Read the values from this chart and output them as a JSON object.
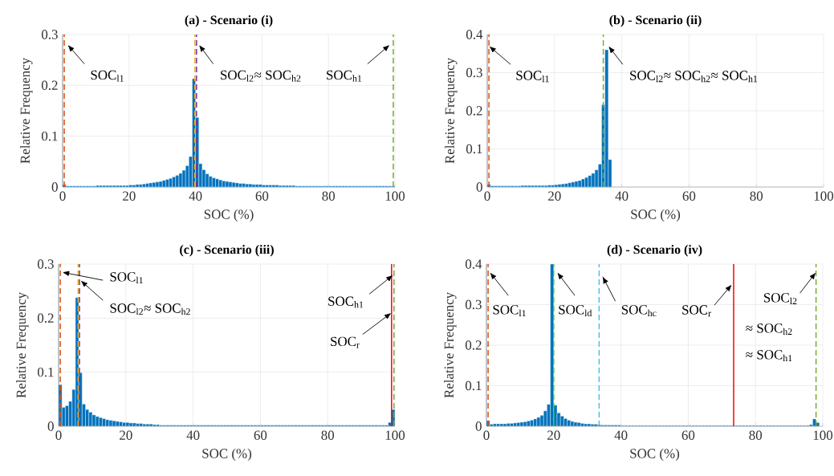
{
  "chart_data": [
    {
      "type": "histogram",
      "title": "(a) - Scenario (i)",
      "xlabel": "SOC (%)",
      "ylabel": "Relative Frequency",
      "color": "#0072bd",
      "grid": true,
      "bins": [
        0,
        1,
        2,
        3,
        4,
        5,
        6,
        7,
        8,
        9,
        10,
        11,
        12,
        13,
        14,
        15,
        16,
        17,
        18,
        19,
        20,
        21,
        22,
        23,
        24,
        25,
        26,
        27,
        28,
        29,
        30,
        31,
        32,
        33,
        34,
        35,
        36,
        37,
        38,
        39,
        40,
        41,
        42,
        43,
        44,
        45,
        46,
        47,
        48,
        49,
        50,
        51,
        52,
        53,
        54,
        55,
        56,
        57,
        58,
        59,
        60,
        61,
        62,
        63,
        64,
        65,
        66,
        67,
        68,
        69,
        70,
        71,
        72,
        73,
        74,
        75,
        76,
        77,
        78,
        79,
        80,
        81,
        82,
        83,
        84,
        85,
        86,
        87,
        88,
        89,
        90,
        91,
        92,
        93,
        94,
        95,
        96,
        97,
        98,
        99,
        100
      ],
      "values": [
        0.005,
        0.002,
        0.002,
        0.002,
        0.002,
        0.002,
        0.002,
        0.002,
        0.002,
        0.002,
        0.003,
        0.003,
        0.003,
        0.003,
        0.003,
        0.003,
        0.003,
        0.003,
        0.003,
        0.003,
        0.004,
        0.004,
        0.005,
        0.005,
        0.006,
        0.007,
        0.008,
        0.009,
        0.01,
        0.011,
        0.013,
        0.015,
        0.017,
        0.02,
        0.023,
        0.027,
        0.033,
        0.042,
        0.06,
        0.213,
        0.137,
        0.046,
        0.034,
        0.026,
        0.021,
        0.018,
        0.016,
        0.014,
        0.012,
        0.011,
        0.01,
        0.009,
        0.008,
        0.007,
        0.007,
        0.006,
        0.006,
        0.005,
        0.005,
        0.005,
        0.004,
        0.004,
        0.004,
        0.004,
        0.004,
        0.003,
        0.003,
        0.003,
        0.003,
        0.003,
        0.002,
        0.002,
        0.002,
        0.002,
        0.002,
        0.002,
        0.002,
        0.002,
        0.002,
        0.002,
        0.002,
        0.002,
        0.002,
        0.002,
        0.002,
        0.002,
        0.002,
        0.002,
        0.002,
        0.002,
        0.002,
        0.002,
        0.002,
        0.002,
        0.002,
        0.002,
        0.002,
        0.002,
        0.002,
        0.002
      ],
      "xlim": [
        0,
        100
      ],
      "xticks": [
        0,
        20,
        40,
        60,
        80,
        100
      ],
      "ylim": [
        0,
        0.3
      ],
      "yticks": [
        0,
        0.1,
        0.2,
        0.3
      ],
      "ref_lines": [
        {
          "axis": "x",
          "value": 0.5,
          "color": "#d95319",
          "line_style": "dashed"
        },
        {
          "axis": "x",
          "value": 39.8,
          "color": "#edb120",
          "line_style": "dashed"
        },
        {
          "axis": "x",
          "value": 40.3,
          "color": "#7e2f8e",
          "line_style": "dashed"
        },
        {
          "axis": "x",
          "value": 99.5,
          "color": "#77ac30",
          "line_style": "dashed"
        }
      ],
      "annotations": [
        {
          "text": "SOC$_{l1}$",
          "x": 1.5,
          "y": 0.28
        },
        {
          "text": "SOC$_{l2}$≈ SOC$_{h2}$",
          "x": 41,
          "y": 0.28
        },
        {
          "text": "SOC$_{h1}$",
          "x": 98.5,
          "y": 0.28
        }
      ]
    },
    {
      "type": "histogram",
      "title": "(b) - Scenario (ii)",
      "xlabel": "SOC (%)",
      "ylabel": "Relative Frequency",
      "color": "#0072bd",
      "grid": true,
      "bins": [
        0,
        1,
        2,
        3,
        4,
        5,
        6,
        7,
        8,
        9,
        10,
        11,
        12,
        13,
        14,
        15,
        16,
        17,
        18,
        19,
        20,
        21,
        22,
        23,
        24,
        25,
        26,
        27,
        28,
        29,
        30,
        31,
        32,
        33,
        34,
        35,
        36,
        37,
        38,
        39,
        40,
        41,
        42,
        43,
        44,
        45,
        46,
        47,
        48,
        49,
        50,
        51,
        52,
        53,
        54,
        55,
        56,
        57,
        58,
        59,
        60,
        61,
        62,
        63,
        64,
        65,
        66,
        67,
        68,
        69,
        70,
        71,
        72,
        73,
        74,
        75,
        76,
        77,
        78,
        79,
        80,
        81,
        82,
        83,
        84,
        85,
        86,
        87,
        88,
        89,
        90,
        91,
        92,
        93,
        94,
        95,
        96,
        97,
        98,
        99,
        100
      ],
      "values": [
        0.007,
        0.003,
        0.003,
        0.003,
        0.003,
        0.003,
        0.003,
        0.003,
        0.003,
        0.003,
        0.004,
        0.004,
        0.004,
        0.004,
        0.004,
        0.004,
        0.004,
        0.004,
        0.005,
        0.005,
        0.006,
        0.007,
        0.008,
        0.009,
        0.011,
        0.013,
        0.015,
        0.017,
        0.021,
        0.025,
        0.03,
        0.036,
        0.045,
        0.06,
        0.216,
        0.36,
        0.072,
        0,
        0,
        0,
        0,
        0,
        0,
        0,
        0,
        0,
        0,
        0,
        0,
        0,
        0,
        0,
        0,
        0,
        0,
        0,
        0,
        0,
        0,
        0,
        0,
        0,
        0,
        0,
        0,
        0,
        0,
        0,
        0,
        0,
        0,
        0,
        0,
        0,
        0,
        0,
        0,
        0,
        0,
        0,
        0,
        0,
        0,
        0,
        0,
        0,
        0,
        0,
        0,
        0,
        0,
        0,
        0,
        0,
        0,
        0,
        0,
        0,
        0,
        0
      ],
      "xlim": [
        0,
        100
      ],
      "xticks": [
        0,
        20,
        40,
        60,
        80,
        100
      ],
      "ylim": [
        0,
        0.4
      ],
      "yticks": [
        0,
        0.1,
        0.2,
        0.3,
        0.4
      ],
      "ref_lines": [
        {
          "axis": "x",
          "value": 0.5,
          "color": "#d95319",
          "line_style": "dashed"
        },
        {
          "axis": "x",
          "value": 34.5,
          "color": "#77ac30",
          "line_style": "dashed"
        }
      ],
      "annotations": [
        {
          "text": "SOC$_{l1}$",
          "x": 0.5,
          "y": 0.37
        },
        {
          "text": "SOC$_{l2}$≈ SOC$_{h2}$≈ SOC$_{h1}$",
          "x": 36,
          "y": 0.37
        }
      ]
    },
    {
      "type": "histogram",
      "title": "(c) - Scenario (iii)",
      "xlabel": "SOC (%)",
      "ylabel": "Relative Frequency",
      "color": "#0072bd",
      "grid": true,
      "bins": [
        0,
        1,
        2,
        3,
        4,
        5,
        6,
        7,
        8,
        9,
        10,
        11,
        12,
        13,
        14,
        15,
        16,
        17,
        18,
        19,
        20,
        21,
        22,
        23,
        24,
        25,
        26,
        27,
        28,
        29,
        30,
        31,
        32,
        33,
        34,
        35,
        36,
        37,
        38,
        39,
        40,
        41,
        42,
        43,
        44,
        45,
        46,
        47,
        48,
        49,
        50,
        51,
        52,
        53,
        54,
        55,
        56,
        57,
        58,
        59,
        60,
        61,
        62,
        63,
        64,
        65,
        66,
        67,
        68,
        69,
        70,
        71,
        72,
        73,
        74,
        75,
        76,
        77,
        78,
        79,
        80,
        81,
        82,
        83,
        84,
        85,
        86,
        87,
        88,
        89,
        90,
        91,
        92,
        93,
        94,
        95,
        96,
        97,
        98,
        99,
        100
      ],
      "values": [
        0.077,
        0.035,
        0.038,
        0.046,
        0.068,
        0.238,
        0.099,
        0.041,
        0.031,
        0.026,
        0.021,
        0.018,
        0.016,
        0.014,
        0.012,
        0.011,
        0.01,
        0.009,
        0.008,
        0.007,
        0.007,
        0.006,
        0.006,
        0.005,
        0.005,
        0.004,
        0.004,
        0.004,
        0.003,
        0.003,
        0.002,
        0.002,
        0.002,
        0.002,
        0.002,
        0.002,
        0.002,
        0.002,
        0.002,
        0.002,
        0.002,
        0.002,
        0.002,
        0.002,
        0.002,
        0.002,
        0.002,
        0.002,
        0.002,
        0.002,
        0.002,
        0.002,
        0.002,
        0.002,
        0.002,
        0.002,
        0.002,
        0.002,
        0.002,
        0.002,
        0.002,
        0.002,
        0.002,
        0.002,
        0.002,
        0.002,
        0.002,
        0.002,
        0.002,
        0.002,
        0.002,
        0.002,
        0.002,
        0.002,
        0.002,
        0.002,
        0.002,
        0.002,
        0.002,
        0.002,
        0.002,
        0.002,
        0.002,
        0.002,
        0.002,
        0.002,
        0.002,
        0.002,
        0.002,
        0.002,
        0.002,
        0.002,
        0.002,
        0.002,
        0.002,
        0.002,
        0.002,
        0.002,
        0.007,
        0.031
      ],
      "xlim": [
        0,
        100
      ],
      "xticks": [
        0,
        20,
        40,
        60,
        80,
        100
      ],
      "ylim": [
        0,
        0.3
      ],
      "yticks": [
        0,
        0.1,
        0.2,
        0.3
      ],
      "ref_lines": [
        {
          "axis": "x",
          "value": 0.5,
          "color": "#d95319",
          "line_style": "dashed"
        },
        {
          "axis": "x",
          "value": 5.8,
          "color": "#edb120",
          "line_style": "dashed"
        },
        {
          "axis": "x",
          "value": 6.2,
          "color": "#7e2f8e",
          "line_style": "dashed"
        },
        {
          "axis": "x",
          "value": 99,
          "color": "#ff0000",
          "line_style": "solid"
        },
        {
          "axis": "x",
          "value": 99.7,
          "color": "#77ac30",
          "line_style": "dashed"
        }
      ],
      "annotations": [
        {
          "text": "SOC$_{l1}$",
          "x": 1,
          "y": 0.285
        },
        {
          "text": "SOC$_{l2}$≈ SOC$_{h2}$",
          "x": 6.5,
          "y": 0.27
        },
        {
          "text": "SOC$_{h1}$",
          "x": 99.5,
          "y": 0.28
        },
        {
          "text": "SOC$_{r}$",
          "x": 99,
          "y": 0.21
        }
      ]
    },
    {
      "type": "histogram",
      "title": "(d) - Scenario (iv)",
      "xlabel": "SOC (%)",
      "ylabel": "Relative Frequency",
      "color": "#0072bd",
      "grid": true,
      "bins": [
        0,
        1,
        2,
        3,
        4,
        5,
        6,
        7,
        8,
        9,
        10,
        11,
        12,
        13,
        14,
        15,
        16,
        17,
        18,
        19,
        20,
        21,
        22,
        23,
        24,
        25,
        26,
        27,
        28,
        29,
        30,
        31,
        32,
        33,
        34,
        35,
        36,
        37,
        38,
        39,
        40,
        41,
        42,
        43,
        44,
        45,
        46,
        47,
        48,
        49,
        50,
        51,
        52,
        53,
        54,
        55,
        56,
        57,
        58,
        59,
        60,
        61,
        62,
        63,
        64,
        65,
        66,
        67,
        68,
        69,
        70,
        71,
        72,
        73,
        74,
        75,
        76,
        77,
        78,
        79,
        80,
        81,
        82,
        83,
        84,
        85,
        86,
        87,
        88,
        89,
        90,
        91,
        92,
        93,
        94,
        95,
        96,
        97,
        98,
        99,
        100
      ],
      "values": [
        0.014,
        0.005,
        0.006,
        0.006,
        0.006,
        0.006,
        0.007,
        0.007,
        0.008,
        0.009,
        0.01,
        0.011,
        0.013,
        0.015,
        0.018,
        0.022,
        0.027,
        0.038,
        0.054,
        0.4,
        0.052,
        0.033,
        0.025,
        0.019,
        0.015,
        0.012,
        0.01,
        0.009,
        0.007,
        0.006,
        0.006,
        0.005,
        0.005,
        0.004,
        0.003,
        0.003,
        0.003,
        0.003,
        0.003,
        0.003,
        0.002,
        0.002,
        0.002,
        0.002,
        0.002,
        0.002,
        0.002,
        0.002,
        0.002,
        0.002,
        0.002,
        0.002,
        0.002,
        0.002,
        0.002,
        0.002,
        0.002,
        0.002,
        0.002,
        0.002,
        0.002,
        0.002,
        0.002,
        0.002,
        0.002,
        0.002,
        0.002,
        0.002,
        0.002,
        0.002,
        0.002,
        0.002,
        0.002,
        0.002,
        0.002,
        0.002,
        0.002,
        0.002,
        0.002,
        0.002,
        0.002,
        0.002,
        0.002,
        0.002,
        0.002,
        0.002,
        0.002,
        0.002,
        0.002,
        0.002,
        0.002,
        0.002,
        0.002,
        0.002,
        0.002,
        0.002,
        0.004,
        0.018,
        0.009,
        0
      ],
      "xlim": [
        0,
        100
      ],
      "xticks": [
        0,
        20,
        40,
        60,
        80,
        100
      ],
      "ylim": [
        0,
        0.4
      ],
      "yticks": [
        0,
        0.1,
        0.2,
        0.3,
        0.4
      ],
      "ref_lines": [
        {
          "axis": "x",
          "value": 0.5,
          "color": "#d95319",
          "line_style": "dashed"
        },
        {
          "axis": "x",
          "value": 20,
          "color": "#22dd22",
          "line_style": "dashed"
        },
        {
          "axis": "x",
          "value": 33.5,
          "color": "#4dbeee",
          "line_style": "dashed"
        },
        {
          "axis": "x",
          "value": 73.5,
          "color": "#ff0000",
          "line_style": "solid"
        },
        {
          "axis": "x",
          "value": 98,
          "color": "#77ac30",
          "line_style": "dashed"
        }
      ],
      "annotations": [
        {
          "text": "SOC$_{l1}$",
          "x": 1,
          "y": 0.38
        },
        {
          "text": "SOC$_{ld}$",
          "x": 21,
          "y": 0.38
        },
        {
          "text": "SOC$_{hc}$",
          "x": 34.5,
          "y": 0.37
        },
        {
          "text": "SOC$_{r}$",
          "x": 73,
          "y": 0.35
        },
        {
          "text": "SOC$_{l2}$",
          "x": 98,
          "y": 0.38
        },
        "≈ SOC$_{h2}$",
        "≈ SOC$_{h1}$"
      ]
    }
  ]
}
